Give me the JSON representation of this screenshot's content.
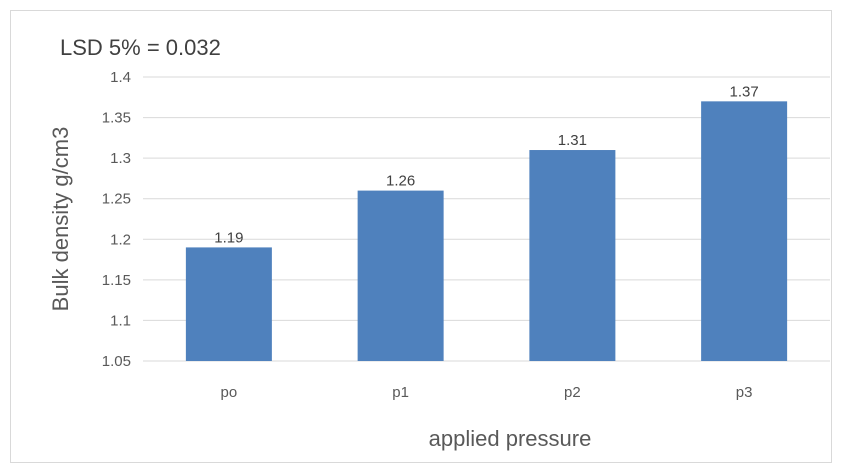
{
  "chart_data": {
    "type": "bar",
    "categories": [
      "po",
      "p1",
      "p2",
      "p3"
    ],
    "values": [
      1.19,
      1.26,
      1.31,
      1.37
    ],
    "data_labels": [
      "1.19",
      "1.26",
      "1.31",
      "1.37"
    ],
    "annotation": "LSD 5% = 0.032",
    "xlabel": "applied pressure",
    "ylabel": "Bulk density g/cm3",
    "ylim": [
      1.05,
      1.4
    ],
    "yticks": [
      "1.05",
      "1.1",
      "1.15",
      "1.2",
      "1.25",
      "1.3",
      "1.35",
      "1.4"
    ],
    "grid": true,
    "legend": "none",
    "bar_color": "#4f81bd",
    "grid_color": "#d9d9d9"
  }
}
